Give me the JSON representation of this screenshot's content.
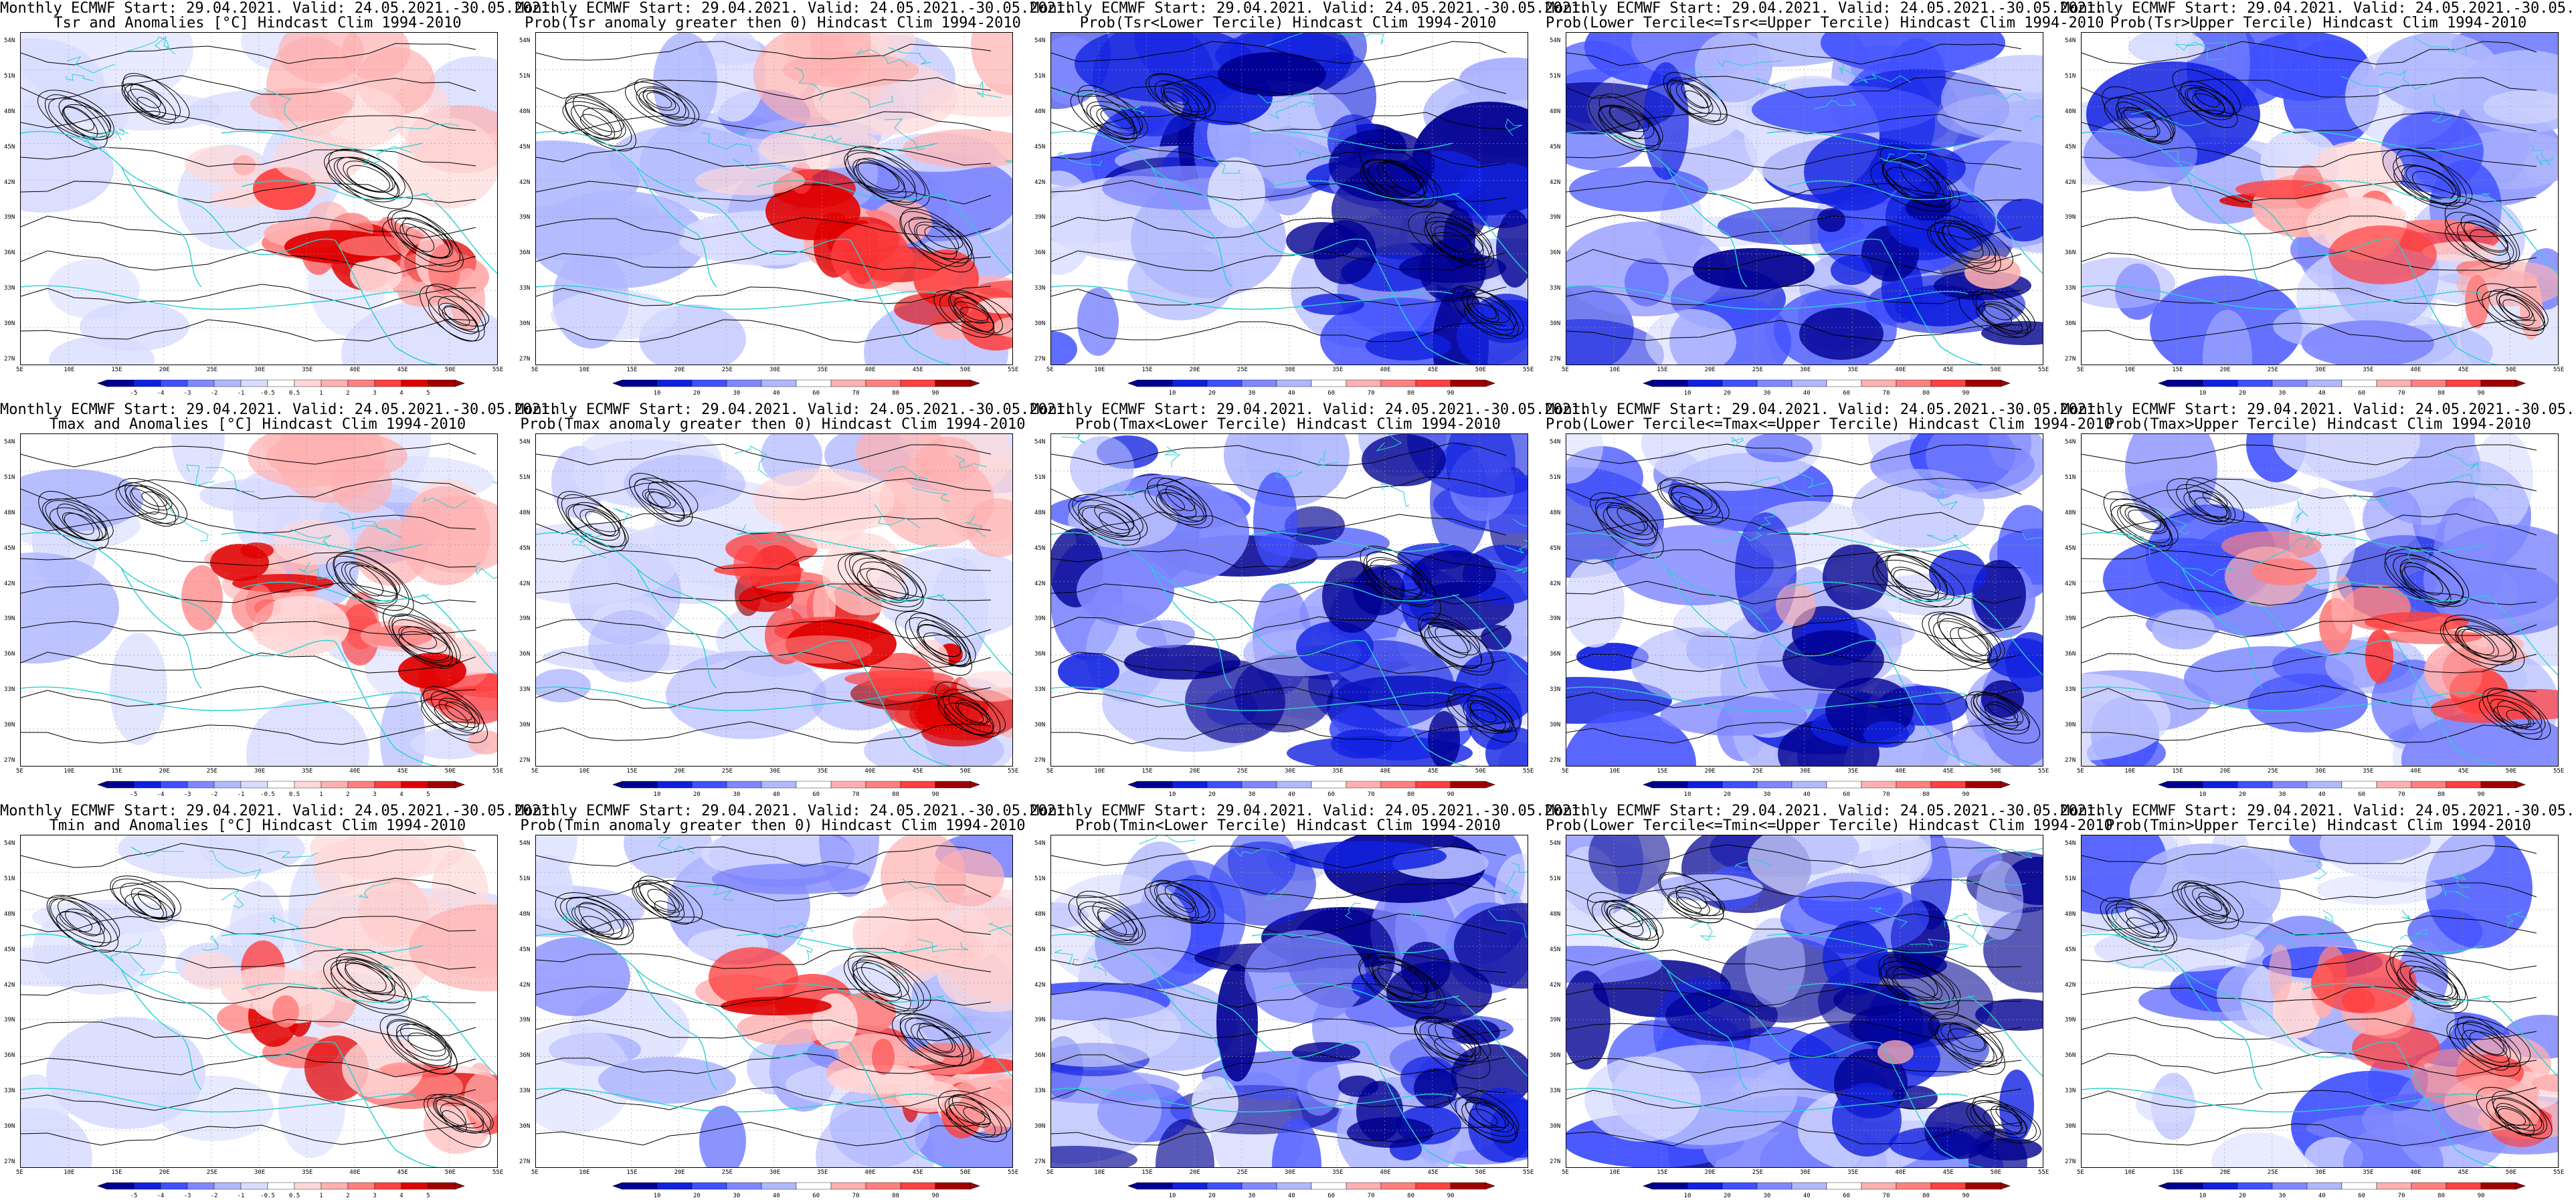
{
  "header_line1": "Monthly ECMWF Start: 29.04.2021. Valid: 24.05.2021.-30.05.2021.",
  "lat_labels": [
    "54N",
    "51N",
    "48N",
    "45N",
    "42N",
    "39N",
    "36N",
    "33N",
    "30N",
    "27N"
  ],
  "lon_labels": [
    "5E",
    "10E",
    "15E",
    "20E",
    "25E",
    "30E",
    "35E",
    "40E",
    "45E",
    "50E",
    "55E"
  ],
  "anomaly_ticks": [
    "-5",
    "-4",
    "-3",
    "-2",
    "-1",
    "-0.5",
    "0.5",
    "1",
    "2",
    "3",
    "4",
    "5"
  ],
  "prob_ticks": [
    "10",
    "20",
    "30",
    "40",
    "60",
    "70",
    "80",
    "90"
  ],
  "colors": {
    "cyan_border": "#2ad0d0",
    "contour": "#000000",
    "red_scale": [
      "#ffd8d8",
      "#ffb0b0",
      "#ff8080",
      "#ff4040",
      "#e00000",
      "#a00000"
    ],
    "blue_scale": [
      "#d8dcff",
      "#b0b8ff",
      "#8088ff",
      "#4050ff",
      "#1020e0",
      "#000090"
    ]
  },
  "panels": [
    {
      "title2": "Tsr and Anomalies [°C] Hindcast Clim 1994-2010",
      "variant": "anom",
      "scale": "anomaly",
      "hot": 0.55,
      "cold": 0.0
    },
    {
      "title2": "Prob(Tsr anomaly greater then 0) Hindcast Clim 1994-2010",
      "variant": "prob_gt0",
      "scale": "prob",
      "hot": 0.6,
      "cold": 0.25
    },
    {
      "title2": "Prob(Tsr<Lower Tercile) Hindcast Clim 1994-2010",
      "variant": "lower",
      "scale": "prob",
      "hot": 0.0,
      "cold": 0.85
    },
    {
      "title2": "Prob(Lower Tercile<=Tsr<=Upper Tercile) Hindcast Clim 1994-2010",
      "variant": "middle",
      "scale": "prob",
      "hot": 0.02,
      "cold": 0.8
    },
    {
      "title2": "Prob(Tsr>Upper Tercile) Hindcast Clim 1994-2010",
      "variant": "upper",
      "scale": "prob",
      "hot": 0.45,
      "cold": 0.6
    },
    {
      "title2": "Tmax and Anomalies [°C] Hindcast Clim 1994-2010",
      "variant": "anom",
      "scale": "anomaly",
      "hot": 0.6,
      "cold": 0.05
    },
    {
      "title2": "Prob(Tmax anomaly greater then 0) Hindcast Clim 1994-2010",
      "variant": "prob_gt0",
      "scale": "prob",
      "hot": 0.65,
      "cold": 0.15
    },
    {
      "title2": "Prob(Tmax<Lower Tercile) Hindcast Clim 1994-2010",
      "variant": "lower",
      "scale": "prob",
      "hot": 0.0,
      "cold": 0.9
    },
    {
      "title2": "Prob(Lower Tercile<=Tmax<=Upper Tercile) Hindcast Clim 1994-2010",
      "variant": "middle",
      "scale": "prob",
      "hot": 0.02,
      "cold": 0.7
    },
    {
      "title2": "Prob(Tmax>Upper Tercile) Hindcast Clim 1994-2010",
      "variant": "upper",
      "scale": "prob",
      "hot": 0.4,
      "cold": 0.55
    },
    {
      "title2": "Tmin and Anomalies [°C] Hindcast Clim 1994-2010",
      "variant": "anom",
      "scale": "anomaly",
      "hot": 0.5,
      "cold": 0.0
    },
    {
      "title2": "Prob(Tmin anomaly greater then 0) Hindcast Clim 1994-2010",
      "variant": "prob_gt0",
      "scale": "prob",
      "hot": 0.6,
      "cold": 0.3
    },
    {
      "title2": "Prob(Tmin<Lower Tercile) Hindcast Clim 1994-2010",
      "variant": "lower",
      "scale": "prob",
      "hot": 0.0,
      "cold": 0.85
    },
    {
      "title2": "Prob(Lower Tercile<=Tmin<=Upper Tercile) Hindcast Clim 1994-2010",
      "variant": "middle",
      "scale": "prob",
      "hot": 0.02,
      "cold": 0.85
    },
    {
      "title2": "Prob(Tmin>Upper Tercile) Hindcast Clim 1994-2010",
      "variant": "upper",
      "scale": "prob",
      "hot": 0.45,
      "cold": 0.5
    }
  ]
}
